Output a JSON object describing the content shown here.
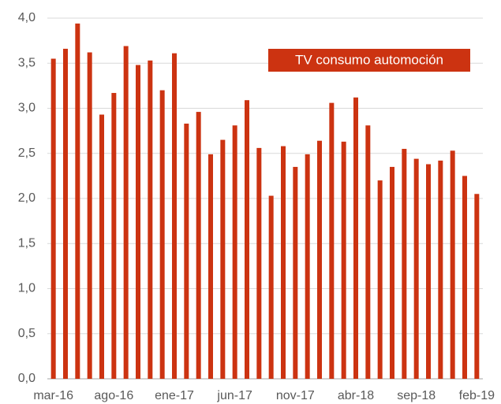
{
  "chart_data": {
    "type": "bar",
    "categories": [
      "mar-16",
      null,
      null,
      null,
      null,
      "ago-16",
      null,
      null,
      null,
      null,
      "ene-17",
      null,
      null,
      null,
      null,
      "jun-17",
      null,
      null,
      null,
      null,
      "nov-17",
      null,
      null,
      null,
      null,
      "abr-18",
      null,
      null,
      null,
      null,
      "sep-18",
      null,
      null,
      null,
      null,
      "feb-19"
    ],
    "series": [
      {
        "name": "TV consumo automoción",
        "color": "#cc3311",
        "values": [
          3.55,
          3.66,
          3.94,
          3.62,
          2.93,
          3.17,
          3.69,
          3.48,
          3.53,
          3.2,
          3.61,
          2.83,
          2.96,
          2.49,
          2.65,
          2.81,
          3.09,
          2.56,
          2.03,
          2.58,
          2.35,
          2.49,
          2.64,
          3.06,
          2.63,
          3.12,
          2.81,
          2.2,
          2.35,
          2.55,
          2.44,
          2.38,
          2.42,
          2.53,
          2.25,
          2.05
        ]
      }
    ],
    "ylim": [
      0,
      4
    ],
    "yticks": [
      {
        "value": 0,
        "label": "0,0"
      },
      {
        "value": 0.5,
        "label": "0,5"
      },
      {
        "value": 1,
        "label": "1,0"
      },
      {
        "value": 1.5,
        "label": "1,5"
      },
      {
        "value": 2,
        "label": "2,0"
      },
      {
        "value": 2.5,
        "label": "2,5"
      },
      {
        "value": 3,
        "label": "3,0"
      },
      {
        "value": 3.5,
        "label": "3,5"
      },
      {
        "value": 4,
        "label": "4,0"
      }
    ],
    "grid": true,
    "legend": "upper right"
  }
}
